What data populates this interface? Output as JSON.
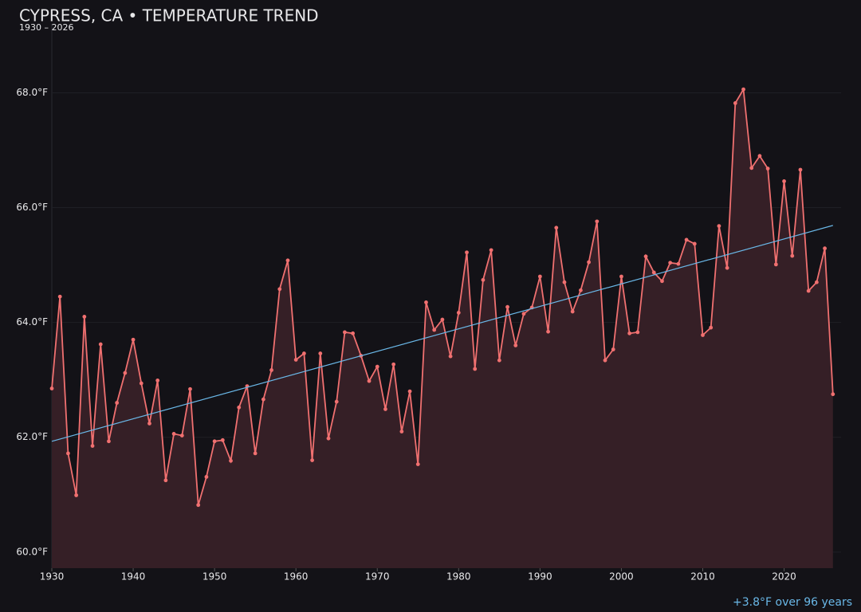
{
  "chart_data": {
    "type": "line",
    "title": "CYPRESS, CA • TEMPERATURE TREND",
    "subtitle": "1930 – 2026",
    "annotation": "+3.8°F over 96 years",
    "x": [
      1930,
      1931,
      1932,
      1933,
      1934,
      1935,
      1936,
      1937,
      1938,
      1939,
      1940,
      1941,
      1942,
      1943,
      1944,
      1945,
      1946,
      1947,
      1948,
      1949,
      1950,
      1951,
      1952,
      1953,
      1954,
      1955,
      1956,
      1957,
      1958,
      1959,
      1960,
      1961,
      1962,
      1963,
      1964,
      1965,
      1966,
      1967,
      1968,
      1969,
      1970,
      1971,
      1972,
      1973,
      1974,
      1975,
      1976,
      1977,
      1978,
      1979,
      1980,
      1981,
      1982,
      1983,
      1984,
      1985,
      1986,
      1987,
      1988,
      1989,
      1990,
      1991,
      1992,
      1993,
      1994,
      1995,
      1996,
      1997,
      1998,
      1999,
      2000,
      2001,
      2002,
      2003,
      2004,
      2005,
      2006,
      2007,
      2008,
      2009,
      2010,
      2011,
      2012,
      2013,
      2014,
      2015,
      2016,
      2017,
      2018,
      2019,
      2020,
      2021,
      2022,
      2023,
      2024,
      2025,
      2026
    ],
    "series": [
      {
        "color": "#f07070",
        "fill": "#351f26",
        "values": [
          62.85,
          64.45,
          61.72,
          60.99,
          64.1,
          61.85,
          63.62,
          61.93,
          62.6,
          63.12,
          63.7,
          62.94,
          62.24,
          62.99,
          61.25,
          62.06,
          62.03,
          62.84,
          60.82,
          61.31,
          61.93,
          61.95,
          61.59,
          62.52,
          62.89,
          61.72,
          62.66,
          63.17,
          64.58,
          65.08,
          63.35,
          63.46,
          61.6,
          63.46,
          61.98,
          62.62,
          63.83,
          63.81,
          63.42,
          62.98,
          63.23,
          62.49,
          63.27,
          62.1,
          62.8,
          61.53,
          64.35,
          63.87,
          64.05,
          63.41,
          64.17,
          65.22,
          63.19,
          64.74,
          65.26,
          63.34,
          64.27,
          63.6,
          64.15,
          64.26,
          64.8,
          63.84,
          65.65,
          64.7,
          64.19,
          64.56,
          65.05,
          65.76,
          63.34,
          63.53,
          64.8,
          63.81,
          63.83,
          65.15,
          64.87,
          64.72,
          65.04,
          65.02,
          65.44,
          65.37,
          63.78,
          63.91,
          65.68,
          64.95,
          67.82,
          68.06,
          66.69,
          66.9,
          66.68,
          65.01,
          66.46,
          65.16,
          66.66,
          64.55,
          64.7,
          65.29,
          62.75
        ]
      }
    ],
    "trend": {
      "color": "#6ab8e8",
      "x": [
        1930,
        2026
      ],
      "values": [
        61.93,
        65.69
      ]
    },
    "xlim": [
      1930,
      2027
    ],
    "ylim": [
      59.72,
      69.2
    ],
    "xticks": [
      1930,
      1940,
      1950,
      1960,
      1970,
      1980,
      1990,
      2000,
      2010,
      2020
    ],
    "yticks": [
      {
        "value": 60,
        "label": "60.0°F"
      },
      {
        "value": 62,
        "label": "62.0°F"
      },
      {
        "value": 64,
        "label": "64.0°F"
      },
      {
        "value": 66,
        "label": "66.0°F"
      },
      {
        "value": 68,
        "label": "68.0°F"
      }
    ],
    "grid": true
  }
}
